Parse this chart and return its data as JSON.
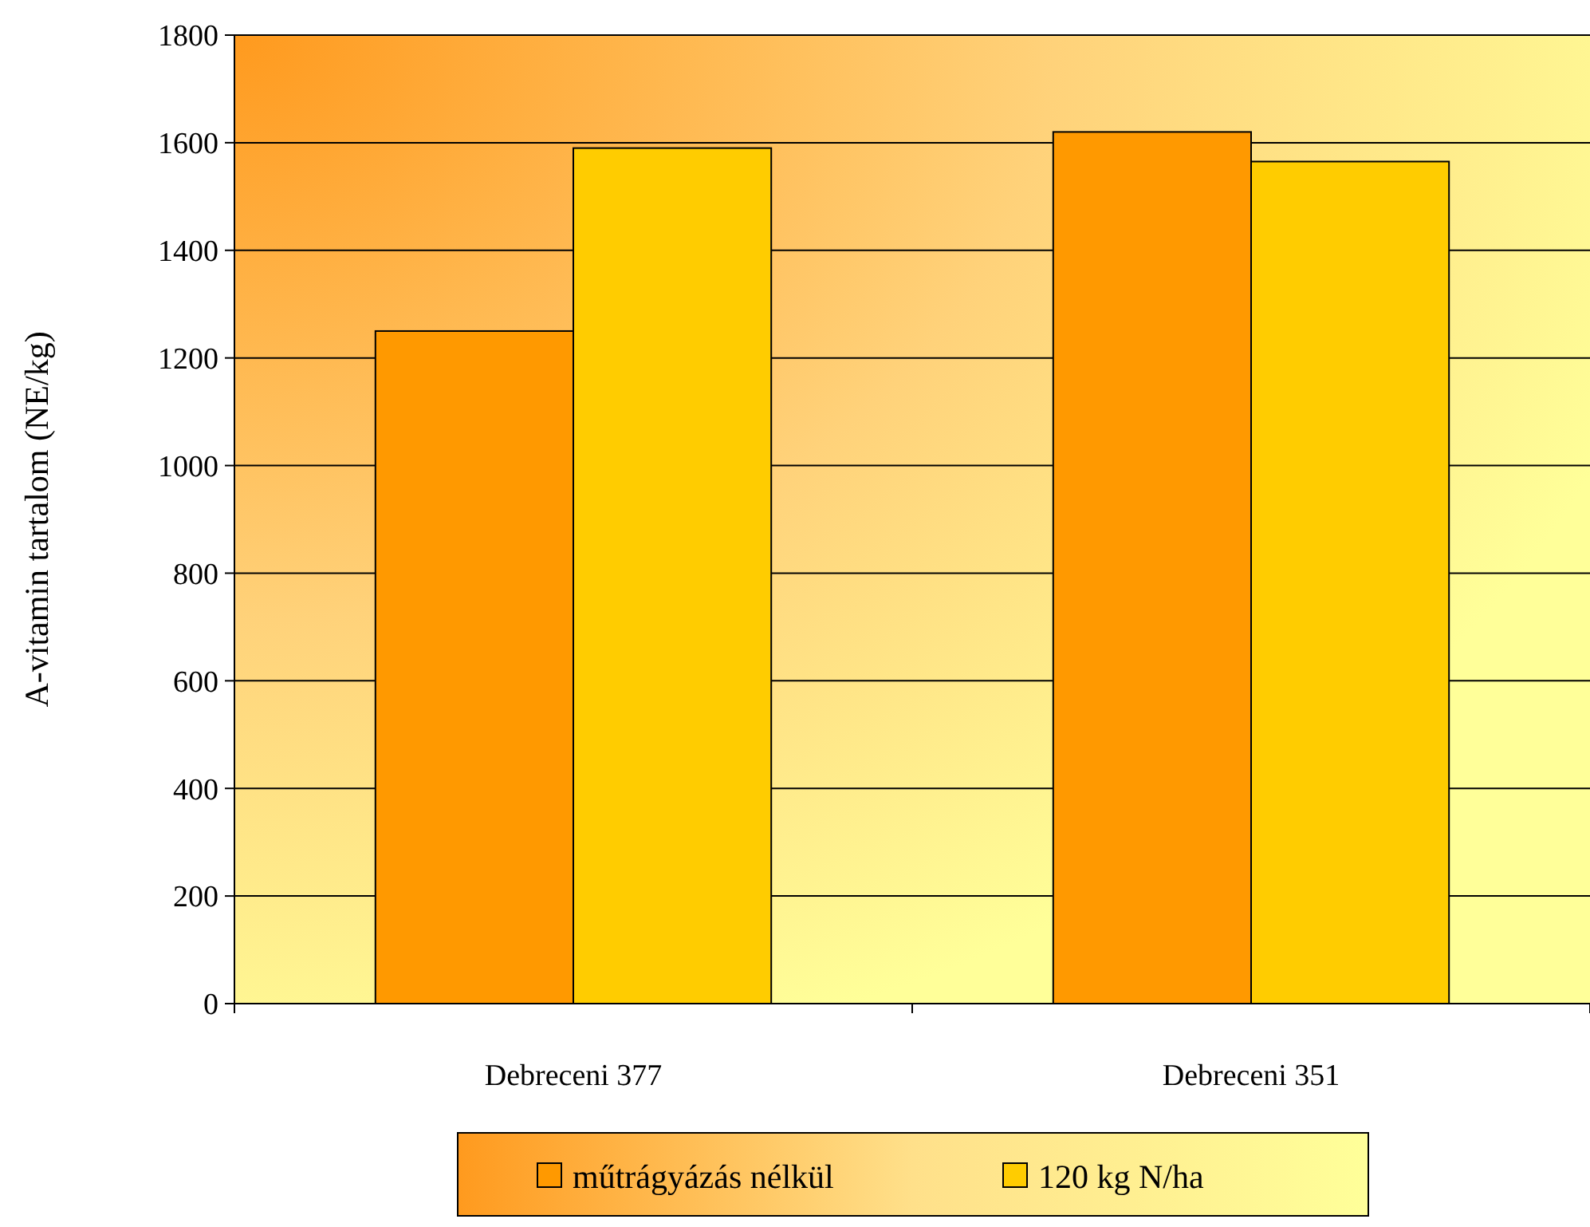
{
  "chart_data": {
    "type": "bar",
    "ylabel": "A-vitamin tartalom (NE/kg)",
    "categories": [
      "Debreceni 377",
      "Debreceni 351"
    ],
    "series": [
      {
        "name": "műtrágyázás nélkül",
        "color": "#ff9900",
        "values": [
          1250,
          1620
        ]
      },
      {
        "name": "120 kg N/ha",
        "color": "#ffcc00",
        "values": [
          1590,
          1565
        ]
      }
    ],
    "ylim": [
      0,
      1800
    ],
    "yticks": [
      0,
      200,
      400,
      600,
      800,
      1000,
      1200,
      1400,
      1600,
      1800
    ],
    "grid": "y",
    "legend": "bottom"
  }
}
